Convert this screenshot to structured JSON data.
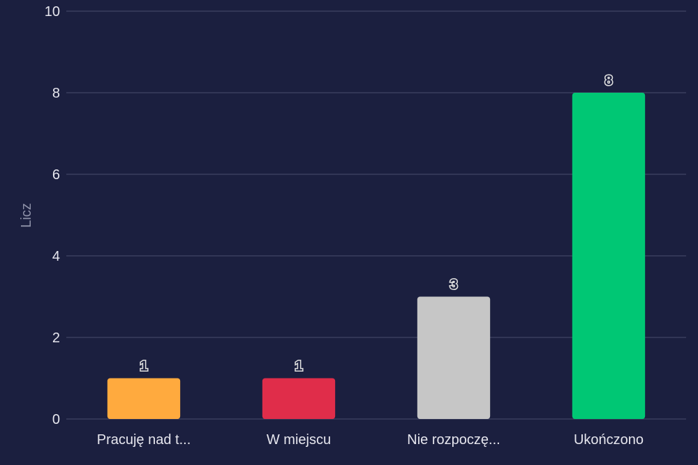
{
  "chart_data": {
    "type": "bar",
    "categories": [
      "Pracuję nad t...",
      "W miejscu",
      "Nie rozpoczę...",
      "Ukończono"
    ],
    "values": [
      1,
      1,
      3,
      8
    ],
    "colors": [
      "#ffaa3e",
      "#e02d4a",
      "#c6c6c6",
      "#00c774"
    ],
    "ylabel": "Licz",
    "ylim": [
      0,
      10
    ],
    "yticks": [
      0,
      2,
      4,
      6,
      8,
      10
    ],
    "grid": true,
    "background": "#1b1f3f"
  }
}
